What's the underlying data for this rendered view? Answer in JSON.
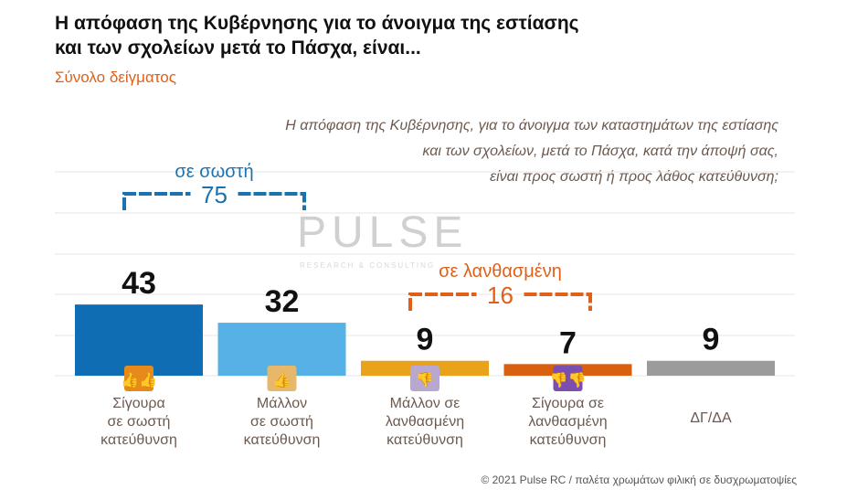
{
  "header": {
    "title": "Η απόφαση της Κυβέρνησης για το άνοιγμα της εστίασης και των σχολείων μετά το Πάσχα, είναι...",
    "subtitle": "Σύνολο δείγματος",
    "question_lines": [
      "Η απόφαση της Κυβέρνησης, για το άνοιγμα των καταστημάτων της εστίασης",
      "και των σχολείων, μετά το Πάσχα, κατά την άποψή σας,",
      "είναι προς σωστή ή προς λάθος κατεύθυνση;"
    ]
  },
  "watermark": {
    "text": "PULSE",
    "sub": "RESEARCH & CONSULTING"
  },
  "chart_data": {
    "type": "bar",
    "categories": [
      [
        "Σίγουρα",
        "σε σωστή",
        "κατεύθυνση"
      ],
      [
        "Μάλλον",
        "σε σωστή",
        "κατεύθυνση"
      ],
      [
        "Μάλλον σε",
        "λανθασμένη",
        "κατεύθυνση"
      ],
      [
        "Σίγουρα σε",
        "λανθασμένη",
        "κατεύθυνση"
      ],
      [
        "ΔΓ/ΔΑ"
      ]
    ],
    "values": [
      43,
      32,
      9,
      7,
      9
    ],
    "colors": [
      "#0f6db3",
      "#55b1e6",
      "#e8a31a",
      "#d9600f",
      "#9b9b9b"
    ],
    "icons": [
      "double-thumbs-up-icon",
      "thumbs-up-icon",
      "thumbs-down-icon",
      "double-thumbs-down-icon",
      null
    ],
    "icon_colors": [
      "#e88a1a",
      "#e8b86a",
      "#b8a8d0",
      "#7a4fb0",
      null
    ],
    "grid": true,
    "annotations": [
      {
        "label": "σε σωστή",
        "value": "75",
        "color": "#1a72b0"
      },
      {
        "label": "σε λανθασμένη",
        "value": "16",
        "color": "#e0601a"
      }
    ]
  },
  "footer": "© 2021 Pulse RC  /  παλέτα χρωμάτων φιλική σε δυσχρωματοψίες"
}
